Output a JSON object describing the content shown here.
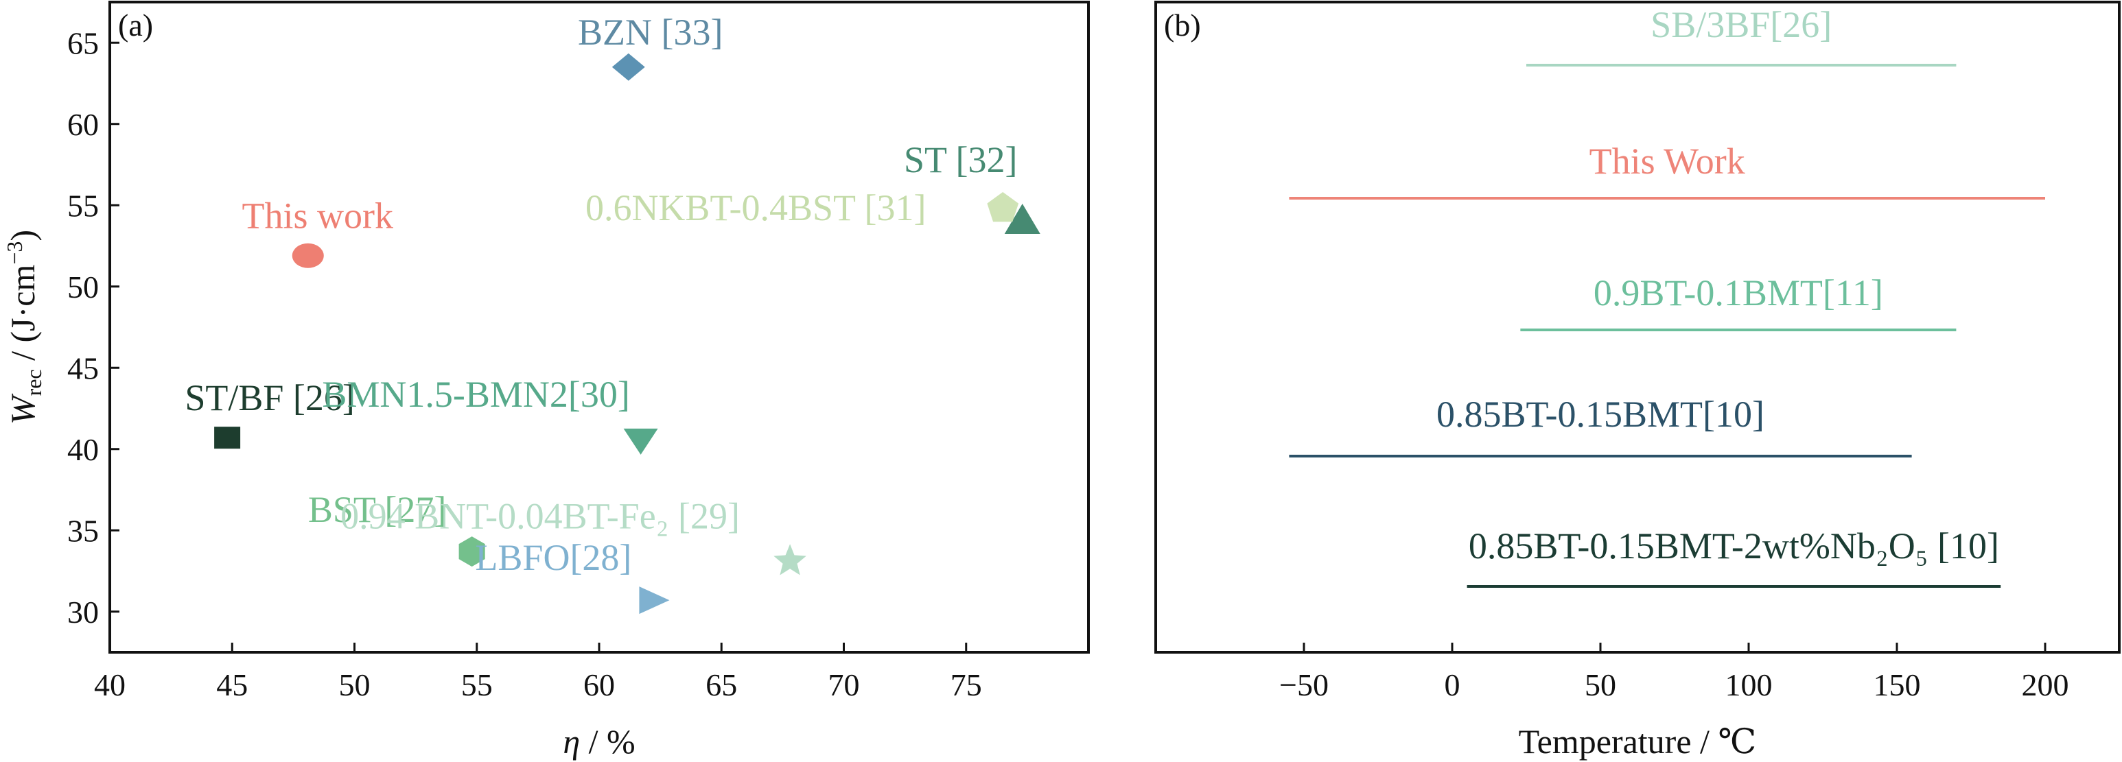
{
  "chart_data": [
    {
      "panel": "(a)",
      "type": "scatter",
      "xlabel": "η / %",
      "ylabel": "W_rec / (J·cm⁻³)",
      "xlim": [
        40,
        80
      ],
      "ylim": [
        27.5,
        67.5
      ],
      "xticks": [
        40,
        45,
        50,
        55,
        60,
        65,
        70,
        75
      ],
      "yticks": [
        30,
        35,
        40,
        45,
        50,
        55,
        60,
        65
      ],
      "points": [
        {
          "label": "BZN [33]",
          "x": 61.2,
          "y": 63.5,
          "marker": "diamond",
          "color": "#5c92b3",
          "label_color": "#5e8aa3"
        },
        {
          "label": "ST [32]",
          "x": 77.3,
          "y": 54.0,
          "marker": "triangle-up",
          "color": "#468a72",
          "label_color": "#468a72"
        },
        {
          "label": "0.6NKBT-0.4BST [31]",
          "x": 76.5,
          "y": 54.8,
          "marker": "pentagon",
          "color": "#cfe3b5",
          "label_color": "#c5dcaa"
        },
        {
          "label": "This work",
          "x": 48.1,
          "y": 51.9,
          "marker": "circle",
          "color": "#ee7f72",
          "label_color": "#ee7f72"
        },
        {
          "label": "ST/BF [26]",
          "x": 44.8,
          "y": 40.7,
          "marker": "square",
          "color": "#1d3d2e",
          "label_color": "#1d3d2e"
        },
        {
          "label": "BMN1.5-BMN2[30]",
          "x": 61.7,
          "y": 40.5,
          "marker": "triangle-down",
          "color": "#56a98a",
          "label_color": "#56a98a"
        },
        {
          "label": "BST [27]",
          "x": 54.8,
          "y": 33.7,
          "marker": "hexagon",
          "color": "#74c08c",
          "label_color": "#74c08c"
        },
        {
          "label": "0.94 BNT-0.04BT-Fe₂ [29]",
          "x": 67.8,
          "y": 33.1,
          "marker": "star",
          "color": "#b5dcc6",
          "label_color": "#b5dcc6"
        },
        {
          "label": "LBFO[28]",
          "x": 62.2,
          "y": 30.7,
          "marker": "triangle-right",
          "color": "#7fb1d0",
          "label_color": "#7fb1d0"
        }
      ]
    },
    {
      "panel": "(b)",
      "type": "range",
      "xlabel": "Temperature / ℃",
      "xlim": [
        -100,
        225
      ],
      "xticks": [
        -50,
        0,
        50,
        100,
        150,
        200
      ],
      "ranges": [
        {
          "label": "SB/3BF[26]",
          "start": 25,
          "end": 170,
          "color": "#a8d6c2"
        },
        {
          "label": "This Work",
          "start": -55,
          "end": 200,
          "color": "#ee8478"
        },
        {
          "label": "0.9BT-0.1BMT[11]",
          "start": 23,
          "end": 170,
          "color": "#6cbf9c"
        },
        {
          "label": "0.85BT-0.15BMT[10]",
          "start": -55,
          "end": 155,
          "color": "#2b5168"
        },
        {
          "label": "0.85BT-0.15BMT-2wt%Nb₂O₅ [10]",
          "start": 5,
          "end": 185,
          "color": "#1b3c33"
        }
      ]
    }
  ]
}
